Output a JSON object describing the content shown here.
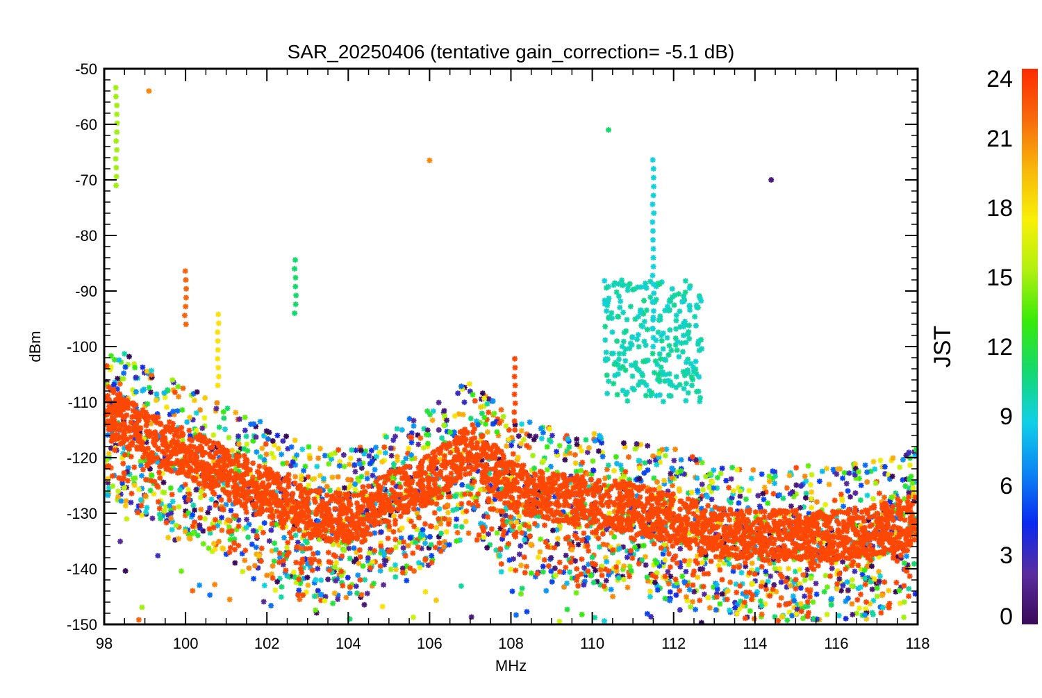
{
  "chart_data": {
    "type": "scatter",
    "title": "SAR_20250406 (tentative gain_correction= -5.1 dB)",
    "xlabel": "MHz",
    "ylabel": "dBm",
    "xlim": [
      98,
      118
    ],
    "ylim": [
      -150,
      -50
    ],
    "xticks": [
      "98",
      "100",
      "102",
      "104",
      "106",
      "108",
      "110",
      "112",
      "114",
      "116",
      "118"
    ],
    "yticks": [
      "-50",
      "-60",
      "-70",
      "-80",
      "-90",
      "-100",
      "-110",
      "-120",
      "-130",
      "-140",
      "-150"
    ],
    "grid": false,
    "marker": "asterisk",
    "colorbar": {
      "label": "JST",
      "range": [
        0,
        24
      ],
      "ticks": [
        "0",
        "3",
        "6",
        "9",
        "12",
        "15",
        "18",
        "21",
        "24"
      ],
      "colormap": "rainbow",
      "colors": [
        "#3a0a5a",
        "#5a2d9f",
        "#0a2af0",
        "#0b84f5",
        "#10d0e8",
        "#14d870",
        "#38ea0a",
        "#b0f010",
        "#f8f008",
        "#f8b80a",
        "#f86a0c",
        "#ff2a00"
      ]
    },
    "series": [
      {
        "x": [
          98.0,
          99.0,
          100.0,
          101.0,
          102.0,
          103.0,
          104.0,
          105.0,
          106.0,
          107.0,
          108.0,
          109.0,
          110.0,
          111.0,
          112.0,
          113.0,
          114.0,
          115.0,
          116.0,
          117.0,
          118.0
        ],
        "y": [
          -111,
          -116,
          -119,
          -123,
          -126,
          -130,
          -131,
          -127,
          -124,
          -118,
          -125,
          -127,
          -128,
          -129,
          -131,
          -133,
          -134,
          -134,
          -134,
          -133,
          -131
        ],
        "jst": 23
      }
    ],
    "features": [
      {
        "x": 98.3,
        "y_range": [
          -71,
          -53
        ],
        "jst": 15
      },
      {
        "x": 100.0,
        "y_range": [
          -96,
          -86
        ],
        "jst": 22
      },
      {
        "x": 100.8,
        "y_range": [
          -107,
          -94
        ],
        "jst": 18
      },
      {
        "x": 102.7,
        "y_range": [
          -94,
          -84
        ],
        "jst": 11
      },
      {
        "x": 110.4,
        "y": -61,
        "jst": 11
      },
      {
        "x": 111.5,
        "y_range": [
          -100,
          -65
        ],
        "jst": 9
      },
      {
        "x": 114.4,
        "y": -70,
        "jst": 1
      },
      {
        "x": 106.0,
        "y": -66.5,
        "jst": 21
      },
      {
        "x": 99.1,
        "y": -54,
        "jst": 21
      },
      {
        "x": 108.1,
        "y_range": [
          -115,
          -102
        ],
        "jst": 23
      }
    ]
  }
}
